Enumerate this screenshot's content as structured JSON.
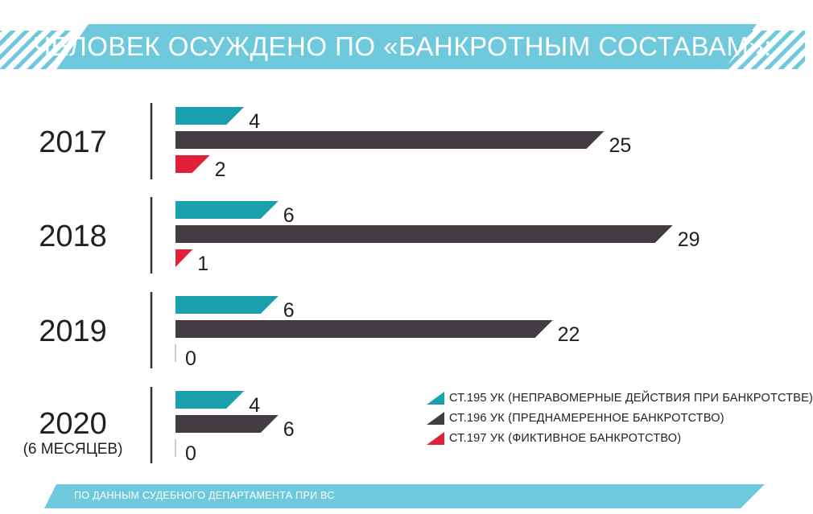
{
  "title": "ЧЕЛОВЕК ОСУЖДЕНО ПО «БАНКРОТНЫМ СОСТАВАМ»:",
  "source": "ПО ДАННЫМ СУДЕБНОГО ДЕПАРТАМЕНТА ПРИ ВС",
  "colors": {
    "banner": "#6ec9dc",
    "art195": "#1b9fac",
    "art196": "#433d43",
    "art197": "#e3203a",
    "axis": "#333333"
  },
  "chart_data": {
    "type": "bar",
    "orientation": "horizontal",
    "categories": [
      "2017",
      "2018",
      "2019",
      "2020"
    ],
    "category_notes": [
      "",
      "",
      "",
      "(6 МЕСЯЦЕВ)"
    ],
    "series": [
      {
        "name": "СТ.195 УК (НЕПРАВОМЕРНЫЕ ДЕЙСТВИЯ ПРИ БАНКРОТСТВЕ)",
        "values": [
          4,
          6,
          6,
          4
        ]
      },
      {
        "name": "СТ.196 УК (ПРЕДНАМЕРЕННОЕ БАНКРОТСТВО)",
        "values": [
          25,
          29,
          22,
          6
        ]
      },
      {
        "name": "СТ.197 УК (ФИКТИВНОЕ БАНКРОТСТВО)",
        "values": [
          2,
          1,
          0,
          0
        ]
      }
    ],
    "xlim": [
      0,
      29
    ],
    "grid": false,
    "legend_position": "bottom-right"
  }
}
